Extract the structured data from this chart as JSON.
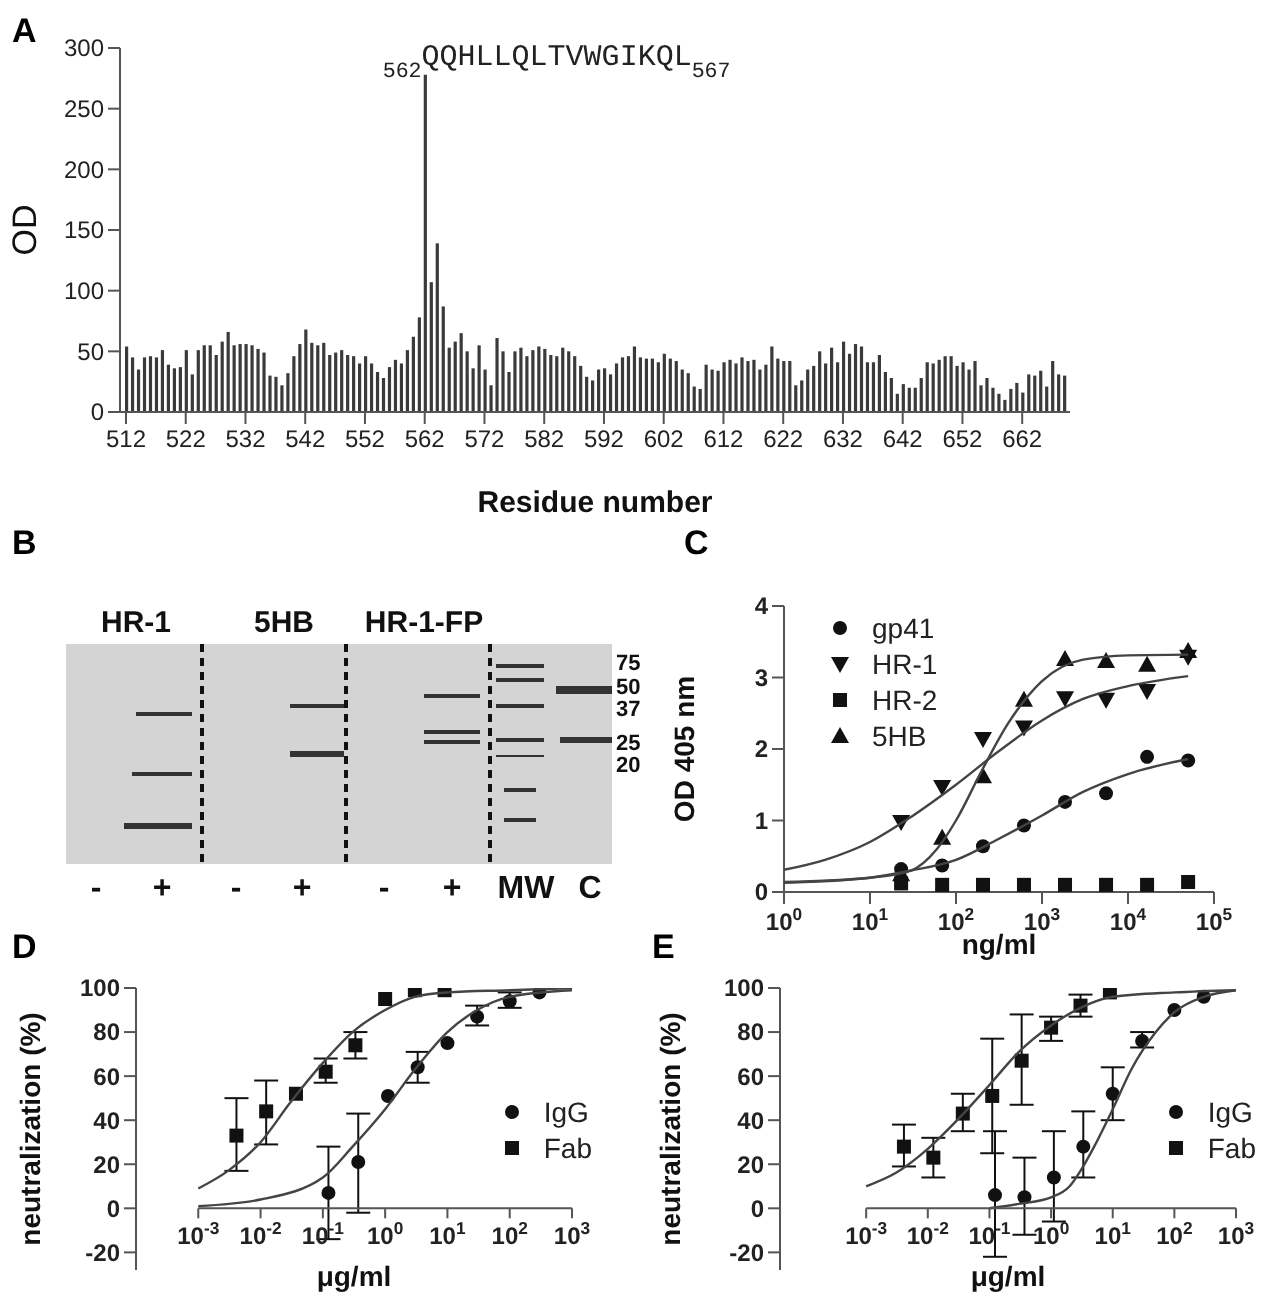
{
  "chart_data": [
    {
      "type": "bar",
      "title": "A",
      "xlabel": "Residue number",
      "ylabel": "OD",
      "color": "#3a3a3a",
      "xlim": [
        511,
        670
      ],
      "xticks": [
        512,
        522,
        532,
        542,
        552,
        562,
        572,
        582,
        592,
        602,
        612,
        622,
        632,
        642,
        652,
        662
      ],
      "ylim": [
        0,
        300
      ],
      "yticks": [
        0,
        50,
        100,
        150,
        200,
        250,
        300
      ],
      "x": [
        512,
        513,
        514,
        515,
        516,
        517,
        518,
        519,
        520,
        521,
        522,
        523,
        524,
        525,
        526,
        527,
        528,
        529,
        530,
        531,
        532,
        533,
        534,
        535,
        536,
        537,
        538,
        539,
        540,
        541,
        542,
        543,
        544,
        545,
        546,
        547,
        548,
        549,
        550,
        551,
        552,
        553,
        554,
        555,
        556,
        557,
        558,
        559,
        560,
        561,
        562,
        563,
        564,
        565,
        566,
        567,
        568,
        569,
        570,
        571,
        572,
        573,
        574,
        575,
        576,
        577,
        578,
        579,
        580,
        581,
        582,
        583,
        584,
        585,
        586,
        587,
        588,
        589,
        590,
        591,
        592,
        593,
        594,
        595,
        596,
        597,
        598,
        599,
        600,
        601,
        602,
        603,
        604,
        605,
        606,
        607,
        608,
        609,
        610,
        611,
        612,
        613,
        614,
        615,
        616,
        617,
        618,
        619,
        620,
        621,
        622,
        623,
        624,
        625,
        626,
        627,
        628,
        629,
        630,
        631,
        632,
        633,
        634,
        635,
        636,
        637,
        638,
        639,
        640,
        641,
        642,
        643,
        644,
        645,
        646,
        647,
        648,
        649,
        650,
        651,
        652,
        653,
        654,
        655,
        656,
        657,
        658,
        659,
        660,
        661,
        662,
        663,
        664,
        665,
        666,
        667,
        668,
        669
      ],
      "values": [
        54,
        45,
        35,
        45,
        46,
        45,
        51,
        39,
        36,
        37,
        51,
        31,
        51,
        55,
        55,
        47,
        58,
        66,
        55,
        56,
        56,
        55,
        52,
        49,
        30,
        29,
        22,
        32,
        46,
        56,
        68,
        57,
        55,
        57,
        47,
        49,
        51,
        47,
        46,
        40,
        46,
        40,
        33,
        28,
        37,
        43,
        40,
        51,
        62,
        78,
        278,
        107,
        139,
        87,
        53,
        58,
        65,
        50,
        36,
        55,
        35,
        22,
        61,
        50,
        33,
        50,
        53,
        46,
        51,
        54,
        52,
        47,
        46,
        53,
        50,
        46,
        38,
        29,
        26,
        35,
        36,
        31,
        40,
        45,
        46,
        54,
        45,
        44,
        44,
        41,
        48,
        44,
        42,
        35,
        32,
        21,
        19,
        39,
        35,
        34,
        41,
        43,
        40,
        45,
        42,
        43,
        35,
        39,
        54,
        44,
        42,
        42,
        22,
        26,
        35,
        38,
        50,
        40,
        53,
        41,
        58,
        48,
        56,
        54,
        41,
        41,
        47,
        33,
        28,
        15,
        23,
        20,
        20,
        28,
        41,
        40,
        43,
        46,
        46,
        38,
        41,
        35,
        42,
        22,
        28,
        20,
        15,
        10,
        19,
        24,
        16,
        31,
        30,
        34,
        21,
        42,
        31,
        30
      ],
      "annotations": [
        {
          "text": "$_{562}$QQHLLQLTVWGIKQL$_{567}$",
          "x": 562,
          "y": 278
        }
      ]
    },
    {
      "type": "other",
      "title": "B",
      "annotations": [
        "HR-1",
        "5HB",
        "HR-1-FP",
        "-",
        "+",
        "-",
        "+",
        "-",
        "+",
        "MW",
        "C",
        "75",
        "50",
        "37",
        "25",
        "20"
      ]
    },
    {
      "type": "scatter",
      "title": "C",
      "xlabel": "ng/ml",
      "ylabel": "OD 405 nm",
      "log": "x",
      "legend": "top left",
      "xlim": [
        1,
        100000
      ],
      "xticks": [
        {
          "value": 1,
          "label": "10$^{0}$"
        },
        {
          "value": 10,
          "label": "10$^{1}$"
        },
        {
          "value": 100,
          "label": "10$^{2}$"
        },
        {
          "value": 1000,
          "label": "10$^{3}$"
        },
        {
          "value": 10000,
          "label": "10$^{4}$"
        },
        {
          "value": 100000,
          "label": "10$^{5}$"
        }
      ],
      "ylim": [
        0,
        4
      ],
      "yticks": [
        0,
        1,
        2,
        3,
        4
      ],
      "x": [
        23,
        69,
        206,
        617,
        1852,
        5556,
        16667,
        50000
      ],
      "series": [
        {
          "name": "gp41",
          "color": "#111111",
          "marker": "circle",
          "values": [
            0.32,
            0.37,
            0.64,
            0.93,
            1.26,
            1.38,
            1.89,
            1.84
          ]
        },
        {
          "name": "HR-1",
          "color": "#111111",
          "marker": "triangle-down",
          "values": [
            0.98,
            1.47,
            2.14,
            2.3,
            2.71,
            2.69,
            2.81,
            3.29
          ]
        },
        {
          "name": "HR-2",
          "color": "#111111",
          "marker": "square",
          "values": [
            0.12,
            0.1,
            0.1,
            0.1,
            0.1,
            0.1,
            0.1,
            0.14
          ]
        },
        {
          "name": "5HB",
          "color": "#111111",
          "marker": "triangle",
          "values": [
            0.25,
            0.76,
            1.62,
            2.69,
            3.26,
            3.23,
            3.18,
            3.37
          ]
        },
        {
          "type": "line",
          "color": "#444444",
          "x": [
            1,
            10,
            30,
            100,
            300,
            1000,
            3000,
            10000,
            50000
          ],
          "values": [
            0.13,
            0.2,
            0.3,
            0.45,
            0.73,
            1.07,
            1.4,
            1.65,
            1.86
          ]
        },
        {
          "type": "line",
          "color": "#444444",
          "x": [
            1,
            3,
            10,
            30,
            100,
            300,
            1000,
            3000,
            10000,
            50000
          ],
          "values": [
            0.31,
            0.45,
            0.7,
            1.05,
            1.5,
            1.95,
            2.4,
            2.7,
            2.88,
            3.02
          ]
        },
        {
          "type": "line",
          "color": "#444444",
          "x": [
            1,
            10,
            30,
            60,
            100,
            200,
            400,
            1000,
            3000,
            10000,
            50000
          ],
          "values": [
            0.14,
            0.2,
            0.3,
            0.6,
            1.0,
            1.7,
            2.35,
            2.95,
            3.25,
            3.31,
            3.32
          ]
        }
      ]
    },
    {
      "type": "scatter",
      "title": "D",
      "xlabel": "μg/ml",
      "ylabel": "neutralization (%)",
      "log": "x",
      "legend": "right",
      "xlim": [
        0.0001,
        1000
      ],
      "xticks": [
        {
          "value": 0.001,
          "label": "10$^{-3}$"
        },
        {
          "value": 0.01,
          "label": "10$^{-2}$"
        },
        {
          "value": 0.1,
          "label": "10$^{-1}$"
        },
        {
          "value": 1,
          "label": "10$^{0}$"
        },
        {
          "value": 10,
          "label": "10$^{1}$"
        },
        {
          "value": 100,
          "label": "10$^{2}$"
        },
        {
          "value": 1000,
          "label": "10$^{3}$"
        }
      ],
      "ylim": [
        -28,
        100
      ],
      "yticks": [
        -20,
        0,
        20,
        40,
        60,
        80,
        100
      ],
      "series": [
        {
          "name": "IgG",
          "color": "#111111",
          "marker": "circle",
          "x": [
            0.123,
            0.37,
            1.11,
            3.33,
            10,
            30,
            100,
            300
          ],
          "values": [
            7,
            21,
            51,
            64,
            75,
            87,
            94,
            98
          ],
          "errors": [
            [
              -14,
              28
            ],
            [
              -2,
              43
            ],
            null,
            [
              57,
              71
            ],
            null,
            [
              83,
              92
            ],
            [
              91,
              98
            ],
            null
          ]
        },
        {
          "name": "Fab",
          "color": "#111111",
          "marker": "square",
          "x": [
            0.0041,
            0.0123,
            0.037,
            0.111,
            0.333,
            1,
            3,
            9
          ],
          "values": [
            33,
            44,
            52,
            62,
            74,
            95,
            99,
            99
          ],
          "errors": [
            [
              17,
              50
            ],
            [
              29,
              58
            ],
            null,
            [
              57,
              68
            ],
            [
              68,
              80
            ],
            null,
            null,
            null
          ]
        },
        {
          "type": "line",
          "color": "#444444",
          "x": [
            0.001,
            0.01,
            0.1,
            0.3,
            1,
            3,
            10,
            30,
            100,
            1000
          ],
          "values": [
            1,
            4,
            14,
            28,
            45,
            63,
            80,
            90,
            96,
            99
          ]
        },
        {
          "type": "line",
          "color": "#444444",
          "x": [
            0.001,
            0.003,
            0.01,
            0.03,
            0.1,
            0.3,
            1,
            3,
            10,
            100,
            1000
          ],
          "values": [
            9,
            17,
            30,
            48,
            66,
            80,
            90,
            96,
            98,
            99,
            100
          ]
        }
      ]
    },
    {
      "type": "scatter",
      "title": "E",
      "xlabel": "μg/ml",
      "ylabel": "neutralization (%)",
      "log": "x",
      "legend": "right",
      "xlim": [
        4e-05,
        1000
      ],
      "xticks": [
        {
          "value": 0.001,
          "label": "10$^{-3}$"
        },
        {
          "value": 0.01,
          "label": "10$^{-2}$"
        },
        {
          "value": 0.1,
          "label": "10$^{-1}$"
        },
        {
          "value": 1,
          "label": "10$^{0}$"
        },
        {
          "value": 10,
          "label": "10$^{1}$"
        },
        {
          "value": 100,
          "label": "10$^{2}$"
        },
        {
          "value": 1000,
          "label": "10$^{3}$"
        }
      ],
      "ylim": [
        -28,
        100
      ],
      "yticks": [
        -20,
        0,
        20,
        40,
        60,
        80,
        100
      ],
      "series": [
        {
          "name": "IgG",
          "color": "#111111",
          "marker": "circle",
          "x": [
            0.123,
            0.37,
            1.11,
            3.33,
            10,
            30,
            100,
            300
          ],
          "values": [
            6,
            5,
            14,
            28,
            52,
            76,
            90,
            96
          ],
          "errors": [
            [
              -22,
              35
            ],
            [
              -12,
              23
            ],
            [
              -6,
              35
            ],
            [
              14,
              44
            ],
            [
              40,
              64
            ],
            [
              73,
              80
            ],
            null,
            null
          ]
        },
        {
          "name": "Fab",
          "color": "#111111",
          "marker": "square",
          "x": [
            0.0041,
            0.0123,
            0.037,
            0.111,
            0.333,
            1,
            3,
            9
          ],
          "values": [
            28,
            23,
            43,
            51,
            67,
            82,
            92,
            98
          ],
          "errors": [
            [
              19,
              38
            ],
            [
              14,
              32
            ],
            [
              35,
              52
            ],
            [
              25,
              77
            ],
            [
              47,
              88
            ],
            [
              76,
              87
            ],
            [
              87,
              97
            ],
            null
          ]
        },
        {
          "type": "line",
          "color": "#444444",
          "x": [
            0.1,
            0.3,
            1,
            2,
            3,
            5,
            10,
            20,
            50,
            100,
            300,
            1000
          ],
          "values": [
            0,
            2,
            5,
            10,
            17,
            28,
            45,
            63,
            80,
            89,
            96,
            99
          ]
        },
        {
          "type": "line",
          "color": "#444444",
          "x": [
            0.001,
            0.003,
            0.01,
            0.03,
            0.1,
            0.3,
            1,
            3,
            10,
            100,
            1000
          ],
          "values": [
            10,
            16,
            27,
            40,
            56,
            71,
            83,
            91,
            96,
            98,
            99
          ]
        }
      ]
    }
  ]
}
